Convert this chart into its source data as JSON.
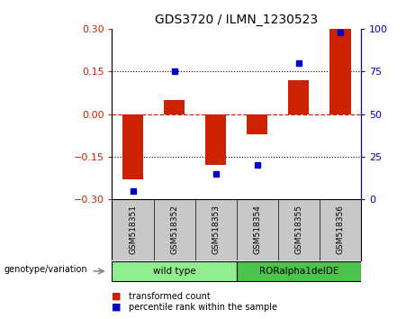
{
  "title": "GDS3720 / ILMN_1230523",
  "samples": [
    "GSM518351",
    "GSM518352",
    "GSM518353",
    "GSM518354",
    "GSM518355",
    "GSM518356"
  ],
  "transformed_count": [
    -0.23,
    0.05,
    -0.18,
    -0.07,
    0.12,
    0.3
  ],
  "percentile_rank": [
    5,
    75,
    15,
    20,
    80,
    98
  ],
  "groups": [
    {
      "label": "wild type",
      "samples": [
        0,
        1,
        2
      ],
      "color": "#90EE90"
    },
    {
      "label": "RORalpha1delDE",
      "samples": [
        3,
        4,
        5
      ],
      "color": "#4CC44C"
    }
  ],
  "ylim_left": [
    -0.3,
    0.3
  ],
  "ylim_right": [
    0,
    100
  ],
  "yticks_left": [
    -0.3,
    -0.15,
    0,
    0.15,
    0.3
  ],
  "yticks_right": [
    0,
    25,
    50,
    75,
    100
  ],
  "bar_color": "#CC2200",
  "dot_color": "#0000CC",
  "hline_color": "#CC2200",
  "dotted_hlines": [
    -0.15,
    0.15
  ],
  "legend_bar_label": "transformed count",
  "legend_dot_label": "percentile rank within the sample",
  "genotype_label": "genotype/variation",
  "background_color": "#ffffff",
  "axis_color_left": "#CC2200",
  "axis_color_right": "#0000CC",
  "sample_bg_color": "#C8C8C8",
  "bar_width": 0.5
}
